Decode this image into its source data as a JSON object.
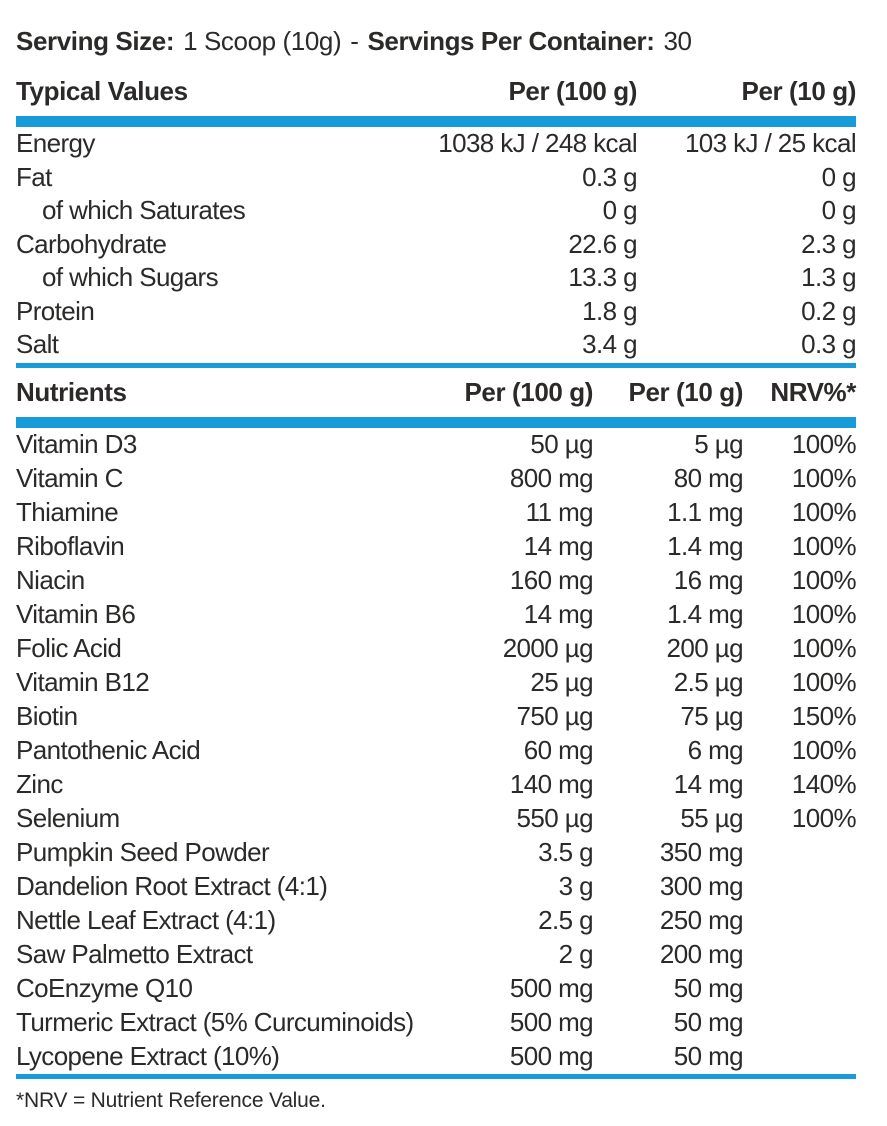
{
  "header": {
    "serving_size_label": "Serving Size:",
    "serving_size_value": "1 Scoop (10g)",
    "separator": "-",
    "servings_per_container_label": "Servings Per Container:",
    "servings_per_container_value": "30"
  },
  "typical_values": {
    "title": "Typical Values",
    "col_per100": "Per (100 g)",
    "col_per10": "Per (10 g)",
    "rows": [
      {
        "label": "Energy",
        "per100": "1038 kJ / 248 kcal",
        "per10": "103 kJ / 25 kcal",
        "indent": false
      },
      {
        "label": "Fat",
        "per100": "0.3 g",
        "per10": "0 g",
        "indent": false
      },
      {
        "label": "of which Saturates",
        "per100": "0 g",
        "per10": "0 g",
        "indent": true
      },
      {
        "label": "Carbohydrate",
        "per100": "22.6 g",
        "per10": "2.3 g",
        "indent": false
      },
      {
        "label": "of which Sugars",
        "per100": "13.3 g",
        "per10": "1.3 g",
        "indent": true
      },
      {
        "label": "Protein",
        "per100": "1.8 g",
        "per10": "0.2 g",
        "indent": false
      },
      {
        "label": "Salt",
        "per100": "3.4 g",
        "per10": "0.3 g",
        "indent": false
      }
    ]
  },
  "nutrients": {
    "title": "Nutrients",
    "col_per100": "Per (100 g)",
    "col_per10": "Per (10 g)",
    "col_nrv": "NRV%*",
    "rows": [
      {
        "label": "Vitamin D3",
        "per100": "50 µg",
        "per10": "5 µg",
        "nrv": "100%"
      },
      {
        "label": "Vitamin C",
        "per100": "800 mg",
        "per10": "80 mg",
        "nrv": "100%"
      },
      {
        "label": "Thiamine",
        "per100": "11 mg",
        "per10": "1.1 mg",
        "nrv": "100%"
      },
      {
        "label": "Riboflavin",
        "per100": "14 mg",
        "per10": "1.4 mg",
        "nrv": "100%"
      },
      {
        "label": "Niacin",
        "per100": "160 mg",
        "per10": "16 mg",
        "nrv": "100%"
      },
      {
        "label": "Vitamin B6",
        "per100": "14 mg",
        "per10": "1.4 mg",
        "nrv": "100%"
      },
      {
        "label": "Folic Acid",
        "per100": "2000 µg",
        "per10": "200 µg",
        "nrv": "100%"
      },
      {
        "label": "Vitamin B12",
        "per100": "25 µg",
        "per10": "2.5 µg",
        "nrv": "100%"
      },
      {
        "label": "Biotin",
        "per100": "750 µg",
        "per10": "75 µg",
        "nrv": "150%"
      },
      {
        "label": "Pantothenic Acid",
        "per100": "60 mg",
        "per10": "6 mg",
        "nrv": "100%"
      },
      {
        "label": "Zinc",
        "per100": "140 mg",
        "per10": "14 mg",
        "nrv": "140%"
      },
      {
        "label": "Selenium",
        "per100": "550 µg",
        "per10": "55 µg",
        "nrv": "100%"
      },
      {
        "label": "Pumpkin Seed Powder",
        "per100": "3.5 g",
        "per10": "350 mg",
        "nrv": ""
      },
      {
        "label": "Dandelion Root Extract (4:1)",
        "per100": "3 g",
        "per10": "300 mg",
        "nrv": ""
      },
      {
        "label": "Nettle Leaf Extract (4:1)",
        "per100": "2.5 g",
        "per10": "250 mg",
        "nrv": ""
      },
      {
        "label": "Saw Palmetto Extract",
        "per100": "2 g",
        "per10": "200 mg",
        "nrv": ""
      },
      {
        "label": "CoEnzyme Q10",
        "per100": "500 mg",
        "per10": "50 mg",
        "nrv": ""
      },
      {
        "label": "Turmeric Extract (5% Curcuminoids)",
        "per100": "500 mg",
        "per10": "50 mg",
        "nrv": ""
      },
      {
        "label": "Lycopene Extract (10%)",
        "per100": "500 mg",
        "per10": "50 mg",
        "nrv": ""
      }
    ]
  },
  "footer": {
    "note": "*NRV = Nutrient Reference Value."
  },
  "colors": {
    "accent_blue": "#189cd9",
    "text": "#2b2a29"
  }
}
